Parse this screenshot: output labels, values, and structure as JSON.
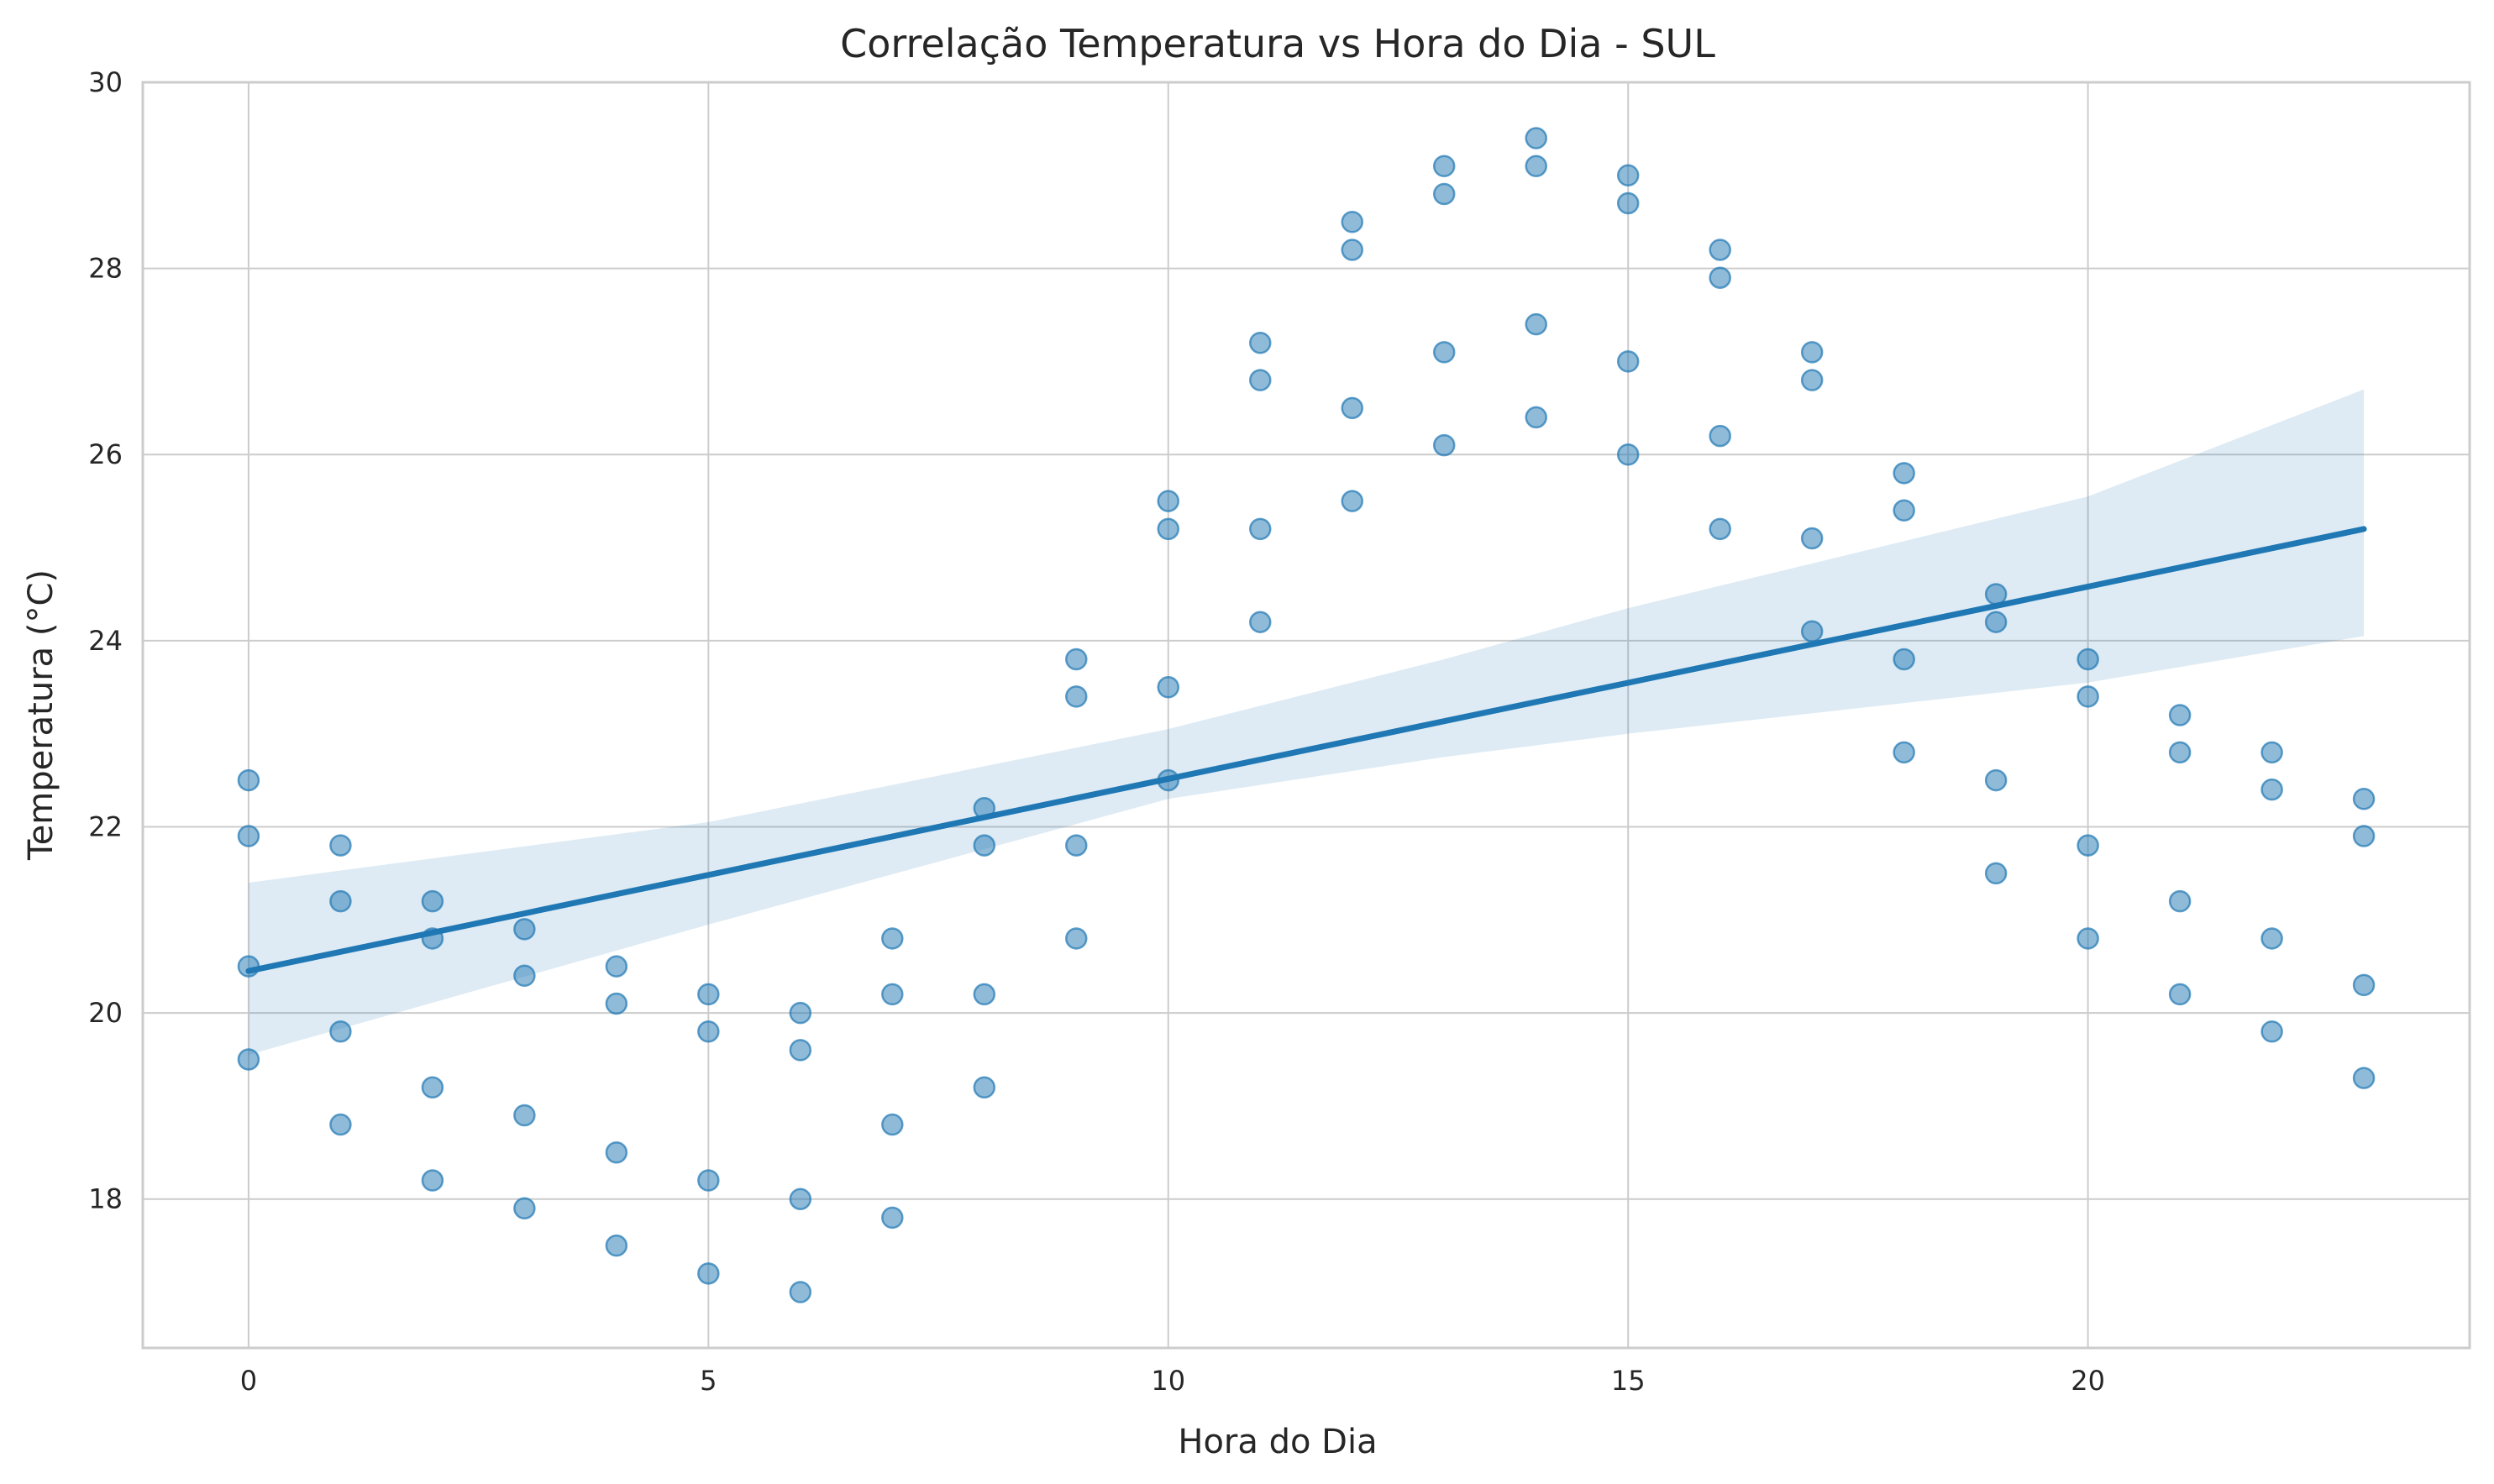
{
  "chart_data": {
    "type": "scatter",
    "title": "Correlação Temperatura vs Hora do Dia - SUL",
    "xlabel": "Hora do Dia",
    "ylabel": "Temperatura (°C)",
    "xlim": [
      -1.15,
      24.15
    ],
    "ylim": [
      16.4,
      30
    ],
    "xticks": [
      0,
      5,
      10,
      15,
      20
    ],
    "yticks": [
      18,
      20,
      22,
      24,
      26,
      28,
      30
    ],
    "grid": true,
    "legend": "none",
    "colors": {
      "points": "#1f77b4",
      "line": "#1f77b4",
      "band": "#1f77b4"
    },
    "points": [
      [
        0,
        22.5
      ],
      [
        0,
        21.9
      ],
      [
        0,
        20.5
      ],
      [
        0,
        19.5
      ],
      [
        1,
        21.8
      ],
      [
        1,
        21.2
      ],
      [
        1,
        19.8
      ],
      [
        1,
        18.8
      ],
      [
        2,
        21.2
      ],
      [
        2,
        20.8
      ],
      [
        2,
        19.2
      ],
      [
        2,
        18.2
      ],
      [
        3,
        20.9
      ],
      [
        3,
        20.4
      ],
      [
        3,
        18.9
      ],
      [
        3,
        17.9
      ],
      [
        4,
        20.5
      ],
      [
        4,
        20.1
      ],
      [
        4,
        18.5
      ],
      [
        4,
        17.5
      ],
      [
        5,
        20.2
      ],
      [
        5,
        19.8
      ],
      [
        5,
        18.2
      ],
      [
        5,
        17.2
      ],
      [
        6,
        20.0
      ],
      [
        6,
        19.6
      ],
      [
        6,
        18.0
      ],
      [
        6,
        17.0
      ],
      [
        7,
        20.8
      ],
      [
        7,
        20.2
      ],
      [
        7,
        18.8
      ],
      [
        7,
        17.8
      ],
      [
        8,
        22.2
      ],
      [
        8,
        21.8
      ],
      [
        8,
        20.2
      ],
      [
        8,
        19.2
      ],
      [
        9,
        23.8
      ],
      [
        9,
        23.4
      ],
      [
        9,
        21.8
      ],
      [
        9,
        20.8
      ],
      [
        10,
        25.5
      ],
      [
        10,
        25.2
      ],
      [
        10,
        23.5
      ],
      [
        10,
        22.5
      ],
      [
        11,
        27.2
      ],
      [
        11,
        26.8
      ],
      [
        11,
        25.2
      ],
      [
        11,
        24.2
      ],
      [
        12,
        28.5
      ],
      [
        12,
        28.2
      ],
      [
        12,
        26.5
      ],
      [
        12,
        25.5
      ],
      [
        13,
        29.1
      ],
      [
        13,
        28.8
      ],
      [
        13,
        27.1
      ],
      [
        13,
        26.1
      ],
      [
        14,
        29.4
      ],
      [
        14,
        29.1
      ],
      [
        14,
        27.4
      ],
      [
        14,
        26.4
      ],
      [
        15,
        29.0
      ],
      [
        15,
        28.7
      ],
      [
        15,
        27.0
      ],
      [
        15,
        26.0
      ],
      [
        16,
        28.2
      ],
      [
        16,
        27.9
      ],
      [
        16,
        26.2
      ],
      [
        16,
        25.2
      ],
      [
        17,
        27.1
      ],
      [
        17,
        26.8
      ],
      [
        17,
        25.1
      ],
      [
        17,
        24.1
      ],
      [
        18,
        25.8
      ],
      [
        18,
        25.4
      ],
      [
        18,
        23.8
      ],
      [
        18,
        22.8
      ],
      [
        19,
        24.5
      ],
      [
        19,
        24.2
      ],
      [
        19,
        22.5
      ],
      [
        19,
        21.5
      ],
      [
        20,
        23.8
      ],
      [
        20,
        23.4
      ],
      [
        20,
        21.8
      ],
      [
        20,
        20.8
      ],
      [
        21,
        23.2
      ],
      [
        21,
        22.8
      ],
      [
        21,
        21.2
      ],
      [
        21,
        20.2
      ],
      [
        22,
        22.8
      ],
      [
        22,
        22.4
      ],
      [
        22,
        20.8
      ],
      [
        22,
        19.8
      ],
      [
        23,
        22.3
      ],
      [
        23,
        21.9
      ],
      [
        23,
        20.3
      ],
      [
        23,
        19.3
      ]
    ],
    "regression": {
      "x": [
        0,
        23
      ],
      "y": [
        20.45,
        25.2
      ]
    },
    "confidence_band": {
      "x": [
        0,
        5,
        10,
        13,
        15,
        20,
        23
      ],
      "lower": [
        19.55,
        20.95,
        22.3,
        22.75,
        23.0,
        23.55,
        24.05
      ],
      "upper": [
        21.4,
        22.05,
        23.05,
        23.8,
        24.35,
        25.55,
        26.7
      ]
    }
  }
}
